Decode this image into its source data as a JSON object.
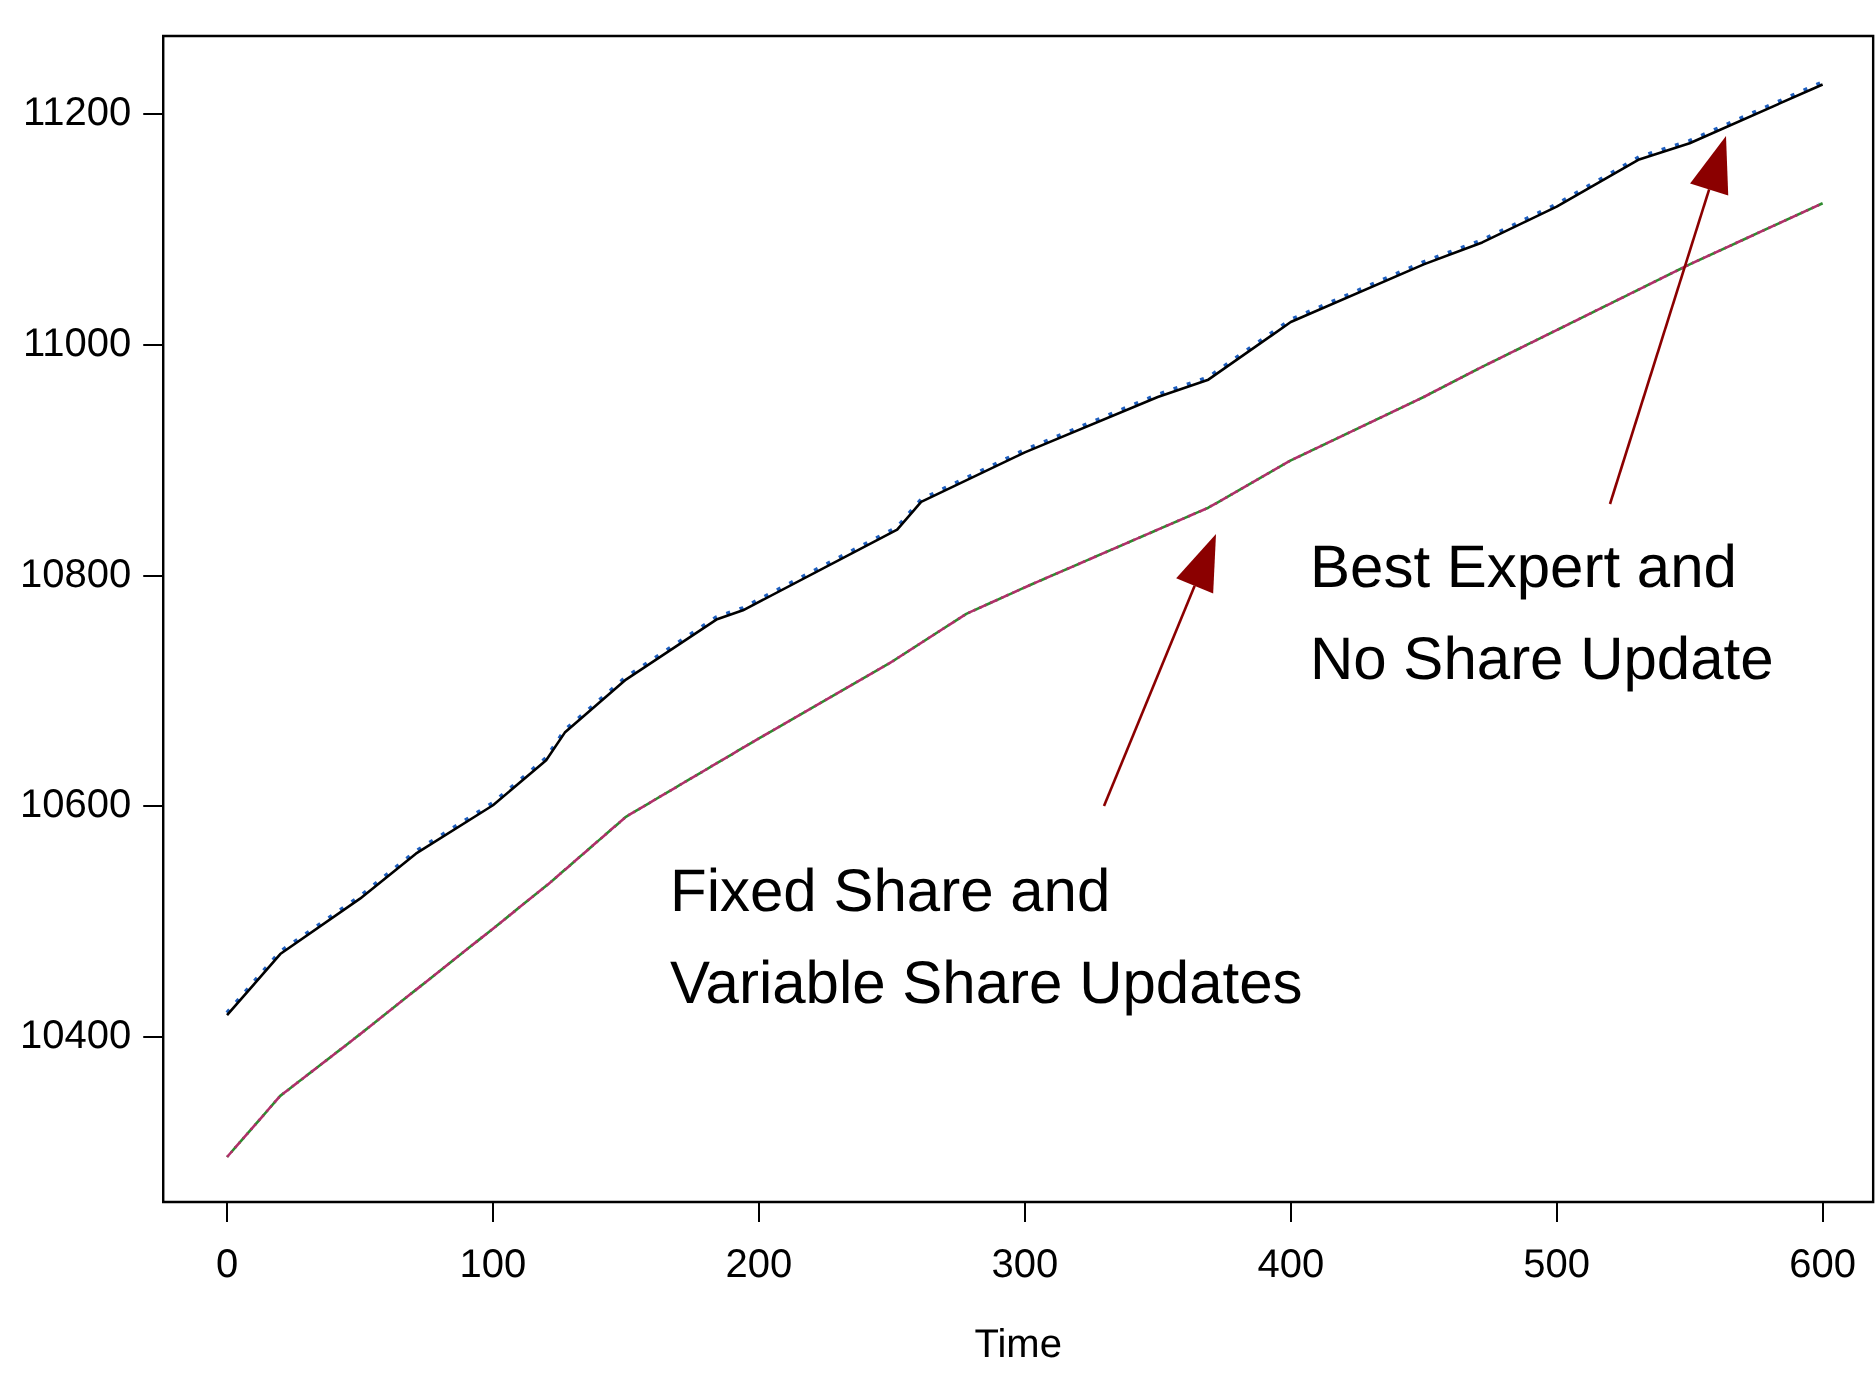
{
  "chart_data": {
    "type": "line",
    "xlabel": "Time",
    "xlim": [
      -24,
      619
    ],
    "xticks": [
      0,
      100,
      200,
      300,
      400,
      500,
      600
    ],
    "ylim": [
      10257,
      11268
    ],
    "yticks": [
      10400,
      10600,
      10800,
      11000,
      11200
    ],
    "grid": false,
    "legend": false,
    "marker": "none",
    "series": [
      {
        "color": "#000000",
        "line_style": "solid",
        "x": [
          0,
          20,
          50,
          71,
          100,
          120,
          127,
          150,
          184,
          194,
          252,
          261,
          300,
          350,
          369,
          400,
          450,
          472,
          500,
          531,
          550,
          600
        ],
        "values": [
          10419,
          10472,
          10520,
          10559,
          10601,
          10640,
          10664,
          10710,
          10762,
          10770,
          10840,
          10864,
          10907,
          10955,
          10970,
          11020,
          11070,
          11089,
          11120,
          11161,
          11175,
          11226
        ]
      },
      {
        "color": "#1f5fbf",
        "line_style": "dotted",
        "x": [
          0,
          20,
          50,
          71,
          100,
          120,
          127,
          150,
          184,
          194,
          252,
          261,
          300,
          350,
          369,
          400,
          450,
          472,
          500,
          531,
          550,
          600
        ],
        "values": [
          10421,
          10474,
          10522,
          10561,
          10603,
          10642,
          10666,
          10712,
          10764,
          10772,
          10842,
          10866,
          10909,
          10957,
          10972,
          11022,
          11072,
          11091,
          11122,
          11163,
          11177,
          11228
        ]
      },
      {
        "color": "#b0306a",
        "line_style": "dashed",
        "x": [
          0,
          20,
          47,
          100,
          121,
          150,
          200,
          249,
          278,
          302,
          369,
          400,
          450,
          471,
          500,
          550,
          600
        ],
        "values": [
          10296,
          10349,
          10397,
          10494,
          10533,
          10591,
          10659,
          10724,
          10767,
          10792,
          10859,
          10900,
          10955,
          10980,
          11013,
          11070,
          11123
        ]
      },
      {
        "color": "#2e8b2e",
        "line_style": "dashed",
        "x": [
          0,
          20,
          47,
          100,
          121,
          150,
          200,
          249,
          278,
          302,
          369,
          400,
          450,
          471,
          500,
          550,
          600
        ],
        "values": [
          10296,
          10349,
          10397,
          10494,
          10533,
          10591,
          10659,
          10724,
          10767,
          10792,
          10859,
          10900,
          10955,
          10980,
          11013,
          11070,
          11123
        ]
      }
    ],
    "annotations": [
      "Best Expert and\nNo Share Update",
      "Fixed Share and\nVariable Share Updates"
    ]
  }
}
